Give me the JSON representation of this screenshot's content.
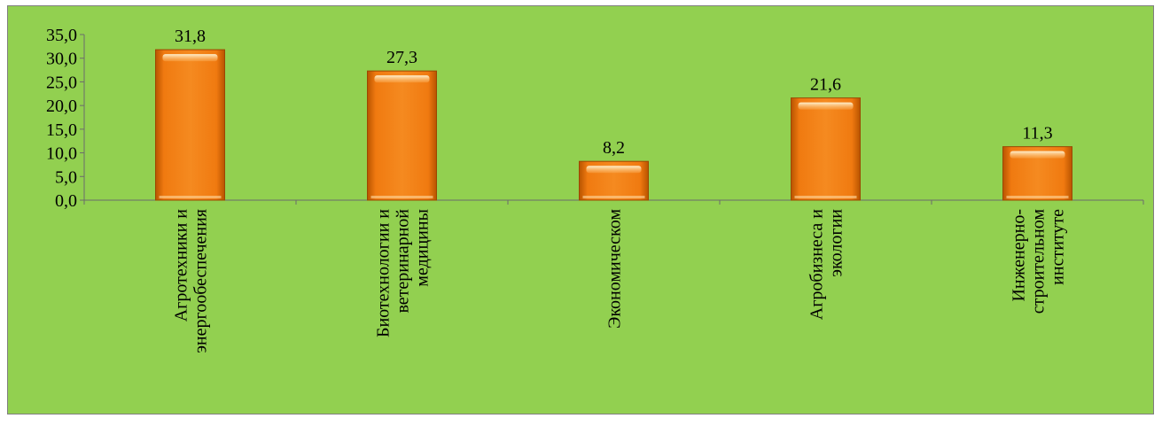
{
  "chart_data": {
    "type": "bar",
    "categories": [
      [
        "Агротехники и",
        "энергообеспечения"
      ],
      [
        "Биотехнологии и",
        "ветеринарной",
        "медицины"
      ],
      [
        "Экономическом"
      ],
      [
        "Агробизнеса и",
        "экологии"
      ],
      [
        "Инженерно-",
        "строительном",
        "институте"
      ]
    ],
    "values": [
      31.8,
      27.3,
      8.2,
      21.6,
      11.3
    ],
    "data_labels": [
      "31,8",
      "27,3",
      "8,2",
      "21,6",
      "11,3"
    ],
    "ylim": [
      0,
      35
    ],
    "y_ticks": [
      "0,0",
      "5,0",
      "10,0",
      "15,0",
      "20,0",
      "25,0",
      "30,0",
      "35,0"
    ],
    "y_tick_values": [
      0,
      5,
      10,
      15,
      20,
      25,
      30,
      35
    ],
    "title": "",
    "xlabel": "",
    "ylabel": "",
    "grid": false,
    "legend": "none",
    "colors": {
      "background": "#92d050",
      "bar": "#f07a10",
      "bar_dark": "#b85400",
      "bar_light": "#ffe6b0"
    }
  }
}
